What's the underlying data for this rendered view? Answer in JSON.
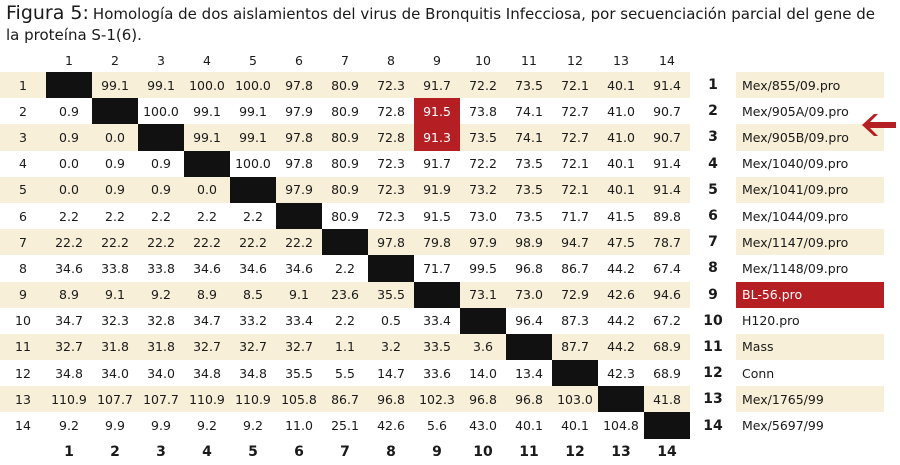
{
  "caption": {
    "label": "Figura 5:",
    "text": "Homología de dos aislamientos del virus de Bronquitis Infecciosa, por secuenciación parcial del gene de la proteína S-1(6)."
  },
  "columns": [
    "1",
    "2",
    "3",
    "4",
    "5",
    "6",
    "7",
    "8",
    "9",
    "10",
    "11",
    "12",
    "13",
    "14"
  ],
  "rows": [
    {
      "num": "1",
      "cells": [
        "",
        "99.1",
        "99.1",
        "100.0",
        "100.0",
        "97.8",
        "80.9",
        "72.3",
        "91.7",
        "72.2",
        "73.5",
        "72.1",
        "40.1",
        "91.4"
      ],
      "idx": "1",
      "name": "Mex/855/09.pro"
    },
    {
      "num": "2",
      "cells": [
        "0.9",
        "",
        "100.0",
        "99.1",
        "99.1",
        "97.9",
        "80.9",
        "72.8",
        "91.5",
        "73.8",
        "74.1",
        "72.7",
        "41.0",
        "90.7"
      ],
      "idx": "2",
      "name": "Mex/905A/09.pro"
    },
    {
      "num": "3",
      "cells": [
        "0.9",
        "0.0",
        "",
        "99.1",
        "99.1",
        "97.8",
        "80.9",
        "72.8",
        "91.3",
        "73.5",
        "74.1",
        "72.7",
        "41.0",
        "90.7"
      ],
      "idx": "3",
      "name": "Mex/905B/09.pro"
    },
    {
      "num": "4",
      "cells": [
        "0.0",
        "0.9",
        "0.9",
        "",
        "100.0",
        "97.8",
        "80.9",
        "72.3",
        "91.7",
        "72.2",
        "73.5",
        "72.1",
        "40.1",
        "91.4"
      ],
      "idx": "4",
      "name": "Mex/1040/09.pro"
    },
    {
      "num": "5",
      "cells": [
        "0.0",
        "0.9",
        "0.9",
        "0.0",
        "",
        "97.9",
        "80.9",
        "72.3",
        "91.9",
        "73.2",
        "73.5",
        "72.1",
        "40.1",
        "91.4"
      ],
      "idx": "5",
      "name": "Mex/1041/09.pro"
    },
    {
      "num": "6",
      "cells": [
        "2.2",
        "2.2",
        "2.2",
        "2.2",
        "2.2",
        "",
        "80.9",
        "72.3",
        "91.5",
        "73.0",
        "73.5",
        "71.7",
        "41.5",
        "89.8"
      ],
      "idx": "6",
      "name": "Mex/1044/09.pro"
    },
    {
      "num": "7",
      "cells": [
        "22.2",
        "22.2",
        "22.2",
        "22.2",
        "22.2",
        "22.2",
        "",
        "97.8",
        "79.8",
        "97.9",
        "98.9",
        "94.7",
        "47.5",
        "78.7"
      ],
      "idx": "7",
      "name": "Mex/1147/09.pro"
    },
    {
      "num": "8",
      "cells": [
        "34.6",
        "33.8",
        "33.8",
        "34.6",
        "34.6",
        "34.6",
        "2.2",
        "",
        "71.7",
        "99.5",
        "96.8",
        "86.7",
        "44.2",
        "67.4"
      ],
      "idx": "8",
      "name": "Mex/1148/09.pro"
    },
    {
      "num": "9",
      "cells": [
        "8.9",
        "9.1",
        "9.2",
        "8.9",
        "8.5",
        "9.1",
        "23.6",
        "35.5",
        "",
        "73.1",
        "73.0",
        "72.9",
        "42.6",
        "94.6"
      ],
      "idx": "9",
      "name": "BL-56.pro"
    },
    {
      "num": "10",
      "cells": [
        "34.7",
        "32.3",
        "32.8",
        "34.7",
        "33.2",
        "33.4",
        "2.2",
        "0.5",
        "33.4",
        "",
        "96.4",
        "87.3",
        "44.2",
        "67.2"
      ],
      "idx": "10",
      "name": "H120.pro"
    },
    {
      "num": "11",
      "cells": [
        "32.7",
        "31.8",
        "31.8",
        "32.7",
        "32.7",
        "32.7",
        "1.1",
        "3.2",
        "33.5",
        "3.6",
        "",
        "87.7",
        "44.2",
        "68.9"
      ],
      "idx": "11",
      "name": "Mass"
    },
    {
      "num": "12",
      "cells": [
        "34.8",
        "34.0",
        "34.0",
        "34.8",
        "34.8",
        "35.5",
        "5.5",
        "14.7",
        "33.6",
        "14.0",
        "13.4",
        "",
        "42.3",
        "68.9"
      ],
      "idx": "12",
      "name": "Conn"
    },
    {
      "num": "13",
      "cells": [
        "110.9",
        "107.7",
        "107.7",
        "110.9",
        "110.9",
        "105.8",
        "86.7",
        "96.8",
        "102.3",
        "96.8",
        "96.8",
        "103.0",
        "",
        "41.8"
      ],
      "idx": "13",
      "name": "Mex/1765/99"
    },
    {
      "num": "14",
      "cells": [
        "9.2",
        "9.9",
        "9.9",
        "9.2",
        "9.2",
        "11.0",
        "25.1",
        "42.6",
        "5.6",
        "43.0",
        "40.1",
        "40.1",
        "104.8",
        ""
      ],
      "idx": "14",
      "name": "Mex/5697/99"
    }
  ],
  "highlight_color": "#b51f24",
  "shade_color": "#f7efd7",
  "arrow_icon": "left-arrow-icon"
}
